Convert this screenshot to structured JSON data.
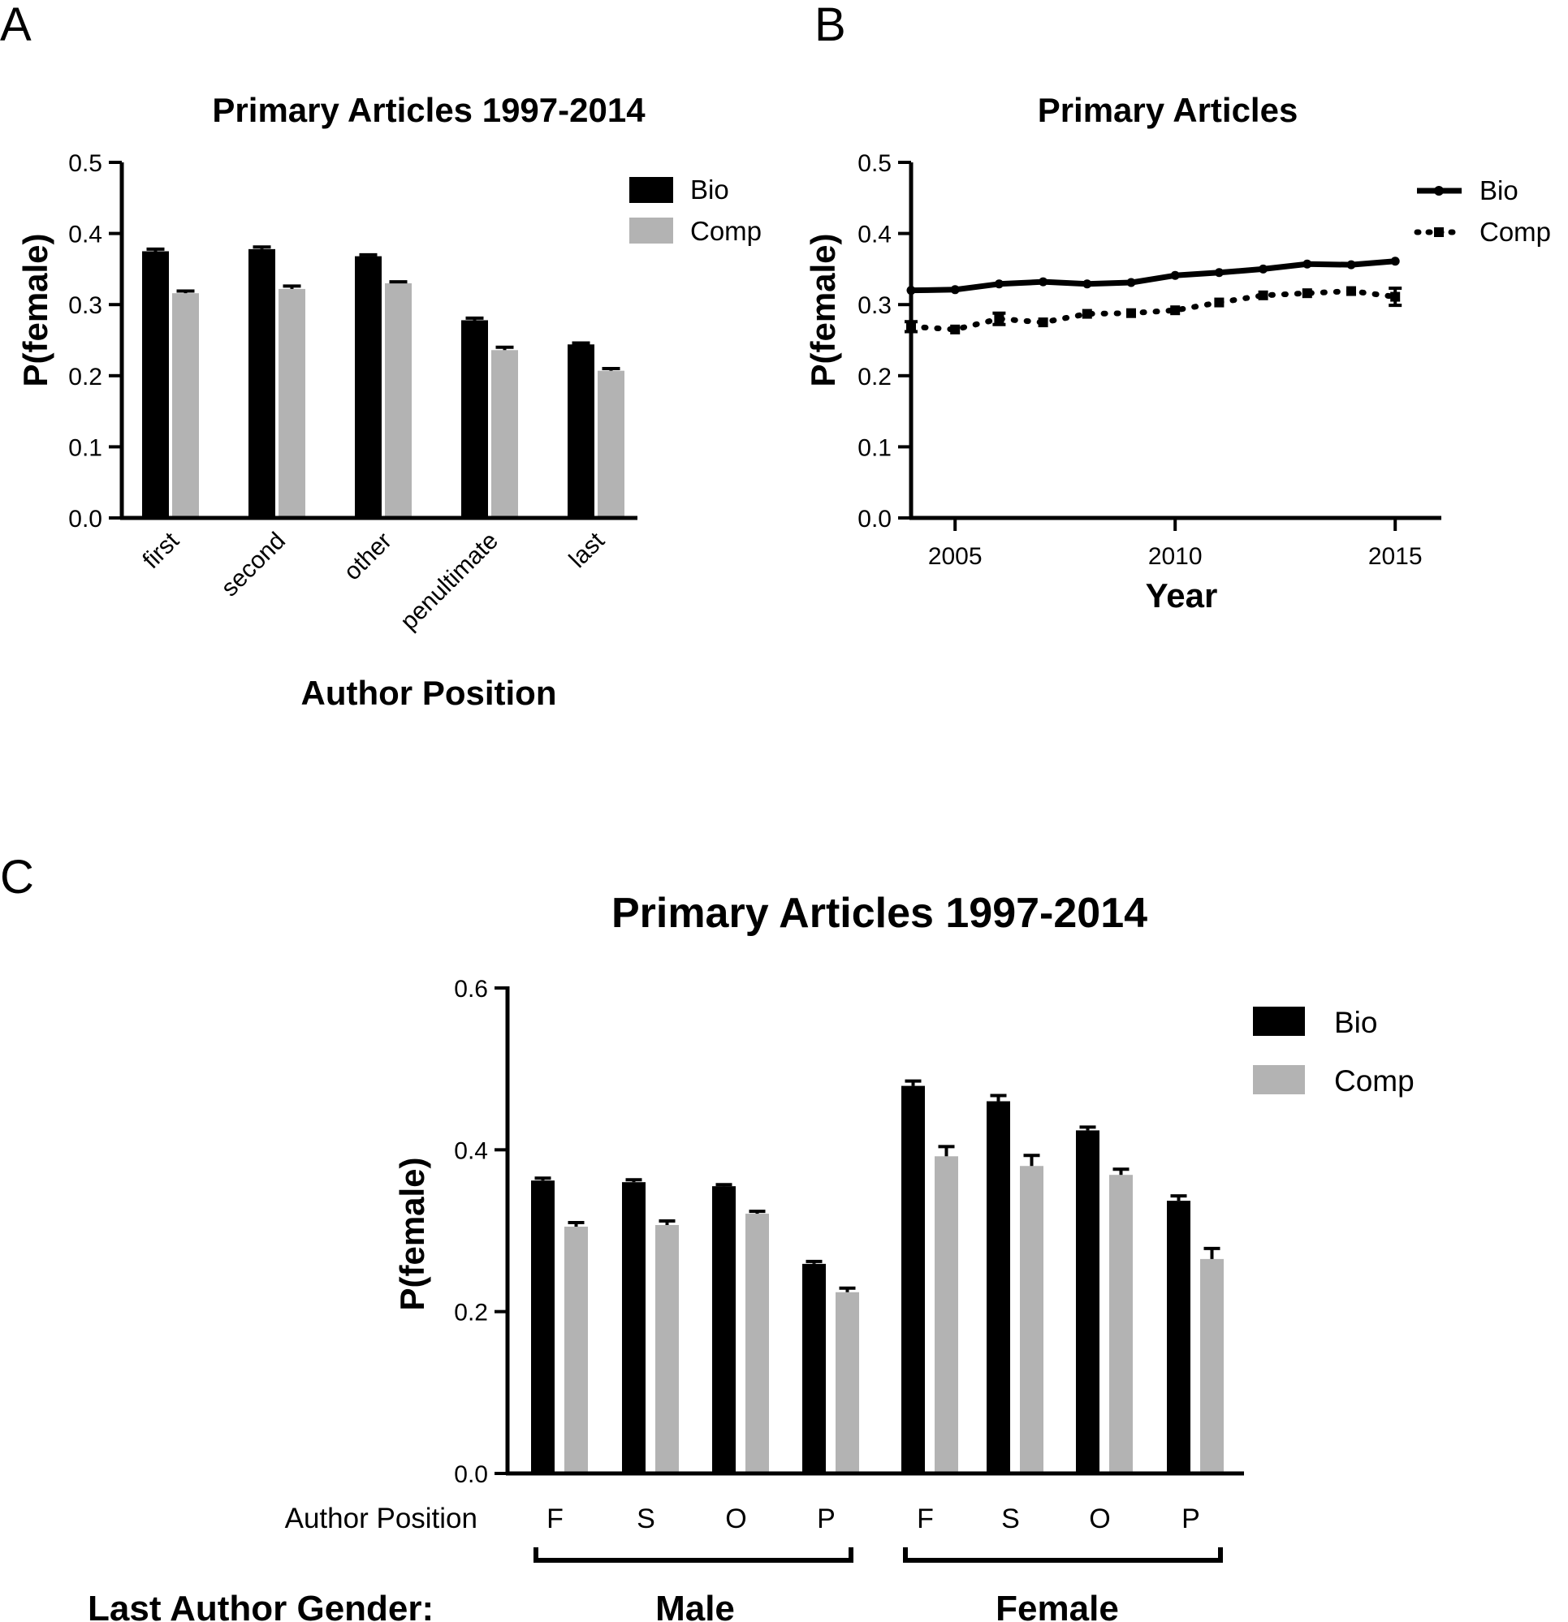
{
  "colors": {
    "bio": "#000000",
    "comp": "#b3b3b3",
    "axis": "#000000"
  },
  "panel_a": {
    "letter": "A"
  },
  "panel_b": {
    "letter": "B"
  },
  "panel_c": {
    "letter": "C",
    "group_axis_label": "Last Author Gender:",
    "position_axis_label": "Author Position",
    "groups": [
      "Male",
      "Female"
    ]
  },
  "chart_data": [
    {
      "id": "A",
      "type": "bar",
      "title": "Primary Articles 1997-2014",
      "xlabel": "Author Position",
      "ylabel": "P(female)",
      "categories": [
        "first",
        "second",
        "other",
        "penultimate",
        "last"
      ],
      "series": [
        {
          "name": "Bio",
          "values": [
            0.375,
            0.378,
            0.368,
            0.278,
            0.244
          ],
          "errors": [
            0.003,
            0.003,
            0.002,
            0.003,
            0.002
          ]
        },
        {
          "name": "Comp",
          "values": [
            0.316,
            0.322,
            0.33,
            0.236,
            0.207
          ],
          "errors": [
            0.003,
            0.004,
            0.002,
            0.004,
            0.003
          ]
        }
      ],
      "ylim": [
        0,
        0.5
      ],
      "yticks": [
        "0.0",
        "0.1",
        "0.2",
        "0.3",
        "0.4",
        "0.5"
      ],
      "legend": "top-right",
      "grid": false
    },
    {
      "id": "B",
      "type": "line",
      "title": "Primary Articles",
      "xlabel": "Year",
      "ylabel": "P(female)",
      "x": [
        2004,
        2005,
        2006,
        2007,
        2008,
        2009,
        2010,
        2011,
        2012,
        2013,
        2014,
        2015
      ],
      "series": [
        {
          "name": "Bio",
          "values": [
            0.32,
            0.321,
            0.329,
            0.332,
            0.329,
            0.331,
            0.341,
            0.345,
            0.35,
            0.357,
            0.356,
            0.361
          ],
          "errors": [
            0.002,
            0.002,
            0.002,
            0.002,
            0.002,
            0.002,
            0.002,
            0.002,
            0.002,
            0.002,
            0.002,
            0.002
          ]
        },
        {
          "name": "Comp",
          "values": [
            0.269,
            0.265,
            0.28,
            0.275,
            0.287,
            0.288,
            0.292,
            0.303,
            0.313,
            0.316,
            0.319,
            0.311
          ],
          "errors": [
            0.007,
            0.004,
            0.008,
            0.004,
            0.004,
            0.004,
            0.004,
            0.004,
            0.004,
            0.004,
            0.004,
            0.012
          ]
        }
      ],
      "xticks": [
        "2005",
        "2010",
        "2015"
      ],
      "xlim": [
        2004,
        2016
      ],
      "ylim": [
        0,
        0.5
      ],
      "yticks": [
        "0.0",
        "0.1",
        "0.2",
        "0.3",
        "0.4",
        "0.5"
      ],
      "legend": "top-right",
      "grid": false
    },
    {
      "id": "C",
      "type": "bar",
      "title": "Primary Articles 1997-2014",
      "ylabel": "P(female)",
      "categories": [
        "F",
        "S",
        "O",
        "P",
        "F",
        "S",
        "O",
        "P"
      ],
      "series": [
        {
          "name": "Bio",
          "values": [
            0.362,
            0.36,
            0.355,
            0.259,
            0.479,
            0.46,
            0.424,
            0.337
          ],
          "errors": [
            0.003,
            0.003,
            0.002,
            0.003,
            0.006,
            0.007,
            0.004,
            0.006
          ]
        },
        {
          "name": "Comp",
          "values": [
            0.305,
            0.307,
            0.321,
            0.224,
            0.392,
            0.38,
            0.369,
            0.265
          ],
          "errors": [
            0.005,
            0.005,
            0.003,
            0.005,
            0.012,
            0.013,
            0.007,
            0.013
          ]
        }
      ],
      "ylim": [
        0,
        0.6
      ],
      "yticks": [
        "0.0",
        "0.2",
        "0.4",
        "0.6"
      ],
      "legend": "top-right",
      "grid": false
    }
  ]
}
